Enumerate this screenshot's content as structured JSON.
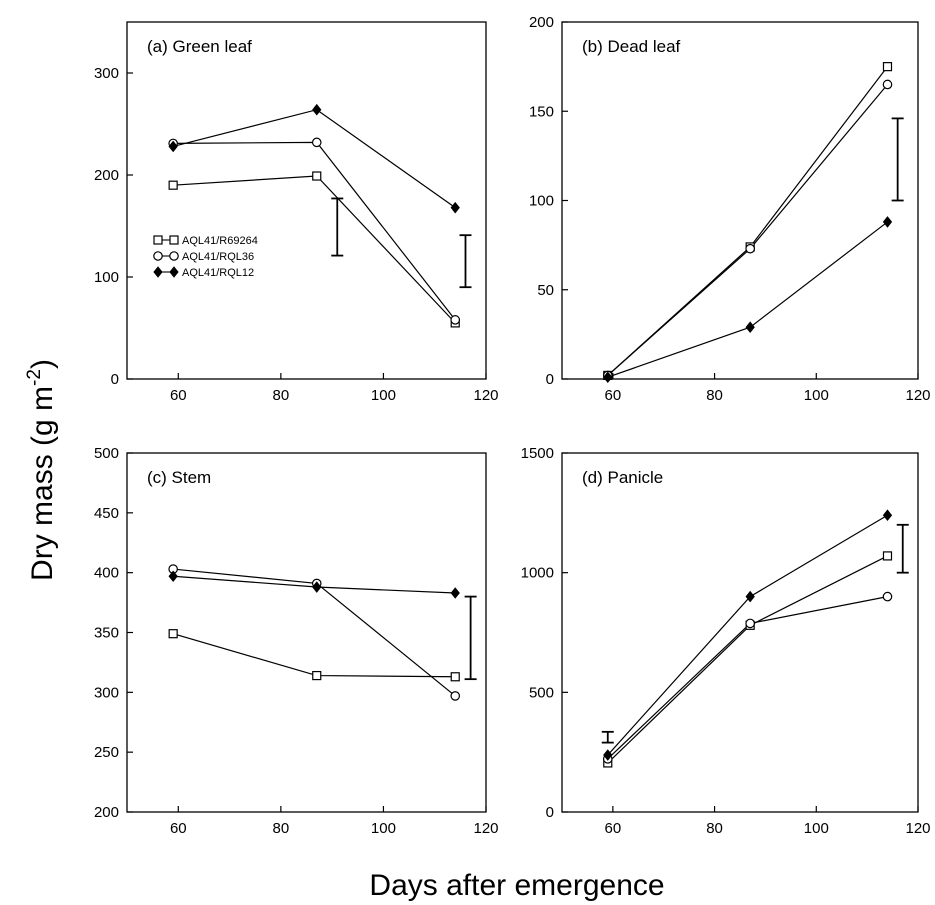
{
  "figure": {
    "ylabel_main": "Dry mass (g m",
    "ylabel_sup": "-2",
    "ylabel_close": ")",
    "xlabel": "Days after emergence"
  },
  "legend": [
    {
      "name": "AQL41/R69264",
      "marker": "square-open"
    },
    {
      "name": "AQL41/RQL36",
      "marker": "circle-open"
    },
    {
      "name": "AQL41/RQL12",
      "marker": "diamond-filled"
    }
  ],
  "chart_data": [
    {
      "type": "line",
      "title": "(a) Green leaf",
      "x": [
        59,
        87,
        114
      ],
      "xlim": [
        50,
        120
      ],
      "xticks": [
        60,
        80,
        100,
        120
      ],
      "ylim": [
        0,
        350
      ],
      "yticks": [
        0,
        100,
        200,
        300
      ],
      "series": [
        {
          "name": "AQL41/R69264",
          "marker": "square-open",
          "values": [
            190,
            199,
            55
          ]
        },
        {
          "name": "AQL41/RQL36",
          "marker": "circle-open",
          "values": [
            231,
            232,
            58
          ]
        },
        {
          "name": "AQL41/RQL12",
          "marker": "diamond-filled",
          "values": [
            228,
            264,
            168
          ]
        }
      ],
      "error_bars": [
        {
          "x": 91,
          "low": 121,
          "high": 177
        },
        {
          "x": 116,
          "low": 90,
          "high": 141
        }
      ],
      "legend_position": "middle-left",
      "grid": false
    },
    {
      "type": "line",
      "title": "(b) Dead leaf",
      "x": [
        59,
        87,
        114
      ],
      "xlim": [
        50,
        120
      ],
      "xticks": [
        60,
        80,
        100,
        120
      ],
      "ylim": [
        0,
        200
      ],
      "yticks": [
        0,
        50,
        100,
        150,
        200
      ],
      "series": [
        {
          "name": "AQL41/R69264",
          "marker": "square-open",
          "values": [
            2,
            74,
            175
          ]
        },
        {
          "name": "AQL41/RQL36",
          "marker": "circle-open",
          "values": [
            2,
            73,
            165
          ]
        },
        {
          "name": "AQL41/RQL12",
          "marker": "diamond-filled",
          "values": [
            1,
            29,
            88
          ]
        }
      ],
      "error_bars": [
        {
          "x": 116,
          "low": 100,
          "high": 146
        }
      ],
      "grid": false
    },
    {
      "type": "line",
      "title": "(c) Stem",
      "x": [
        59,
        87,
        114
      ],
      "xlim": [
        50,
        120
      ],
      "xticks": [
        60,
        80,
        100,
        120
      ],
      "ylim": [
        200,
        500
      ],
      "yticks": [
        200,
        250,
        300,
        350,
        400,
        450,
        500
      ],
      "series": [
        {
          "name": "AQL41/R69264",
          "marker": "square-open",
          "values": [
            349,
            314,
            313
          ]
        },
        {
          "name": "AQL41/RQL36",
          "marker": "circle-open",
          "values": [
            403,
            391,
            297
          ]
        },
        {
          "name": "AQL41/RQL12",
          "marker": "diamond-filled",
          "values": [
            397,
            388,
            383
          ]
        }
      ],
      "error_bars": [
        {
          "x": 117,
          "low": 311,
          "high": 380
        }
      ],
      "grid": false
    },
    {
      "type": "line",
      "title": "(d) Panicle",
      "x": [
        59,
        87,
        114
      ],
      "xlim": [
        50,
        120
      ],
      "xticks": [
        60,
        80,
        100,
        120
      ],
      "ylim": [
        0,
        1500
      ],
      "yticks": [
        0,
        500,
        1000,
        1500
      ],
      "series": [
        {
          "name": "AQL41/R69264",
          "marker": "square-open",
          "values": [
            205,
            780,
            1070
          ]
        },
        {
          "name": "AQL41/RQL36",
          "marker": "circle-open",
          "values": [
            222,
            788,
            900
          ]
        },
        {
          "name": "AQL41/RQL12",
          "marker": "diamond-filled",
          "values": [
            238,
            900,
            1240
          ]
        }
      ],
      "error_bars": [
        {
          "x": 59,
          "low": 290,
          "high": 335
        },
        {
          "x": 117,
          "low": 1000,
          "high": 1200
        }
      ],
      "grid": false
    }
  ]
}
